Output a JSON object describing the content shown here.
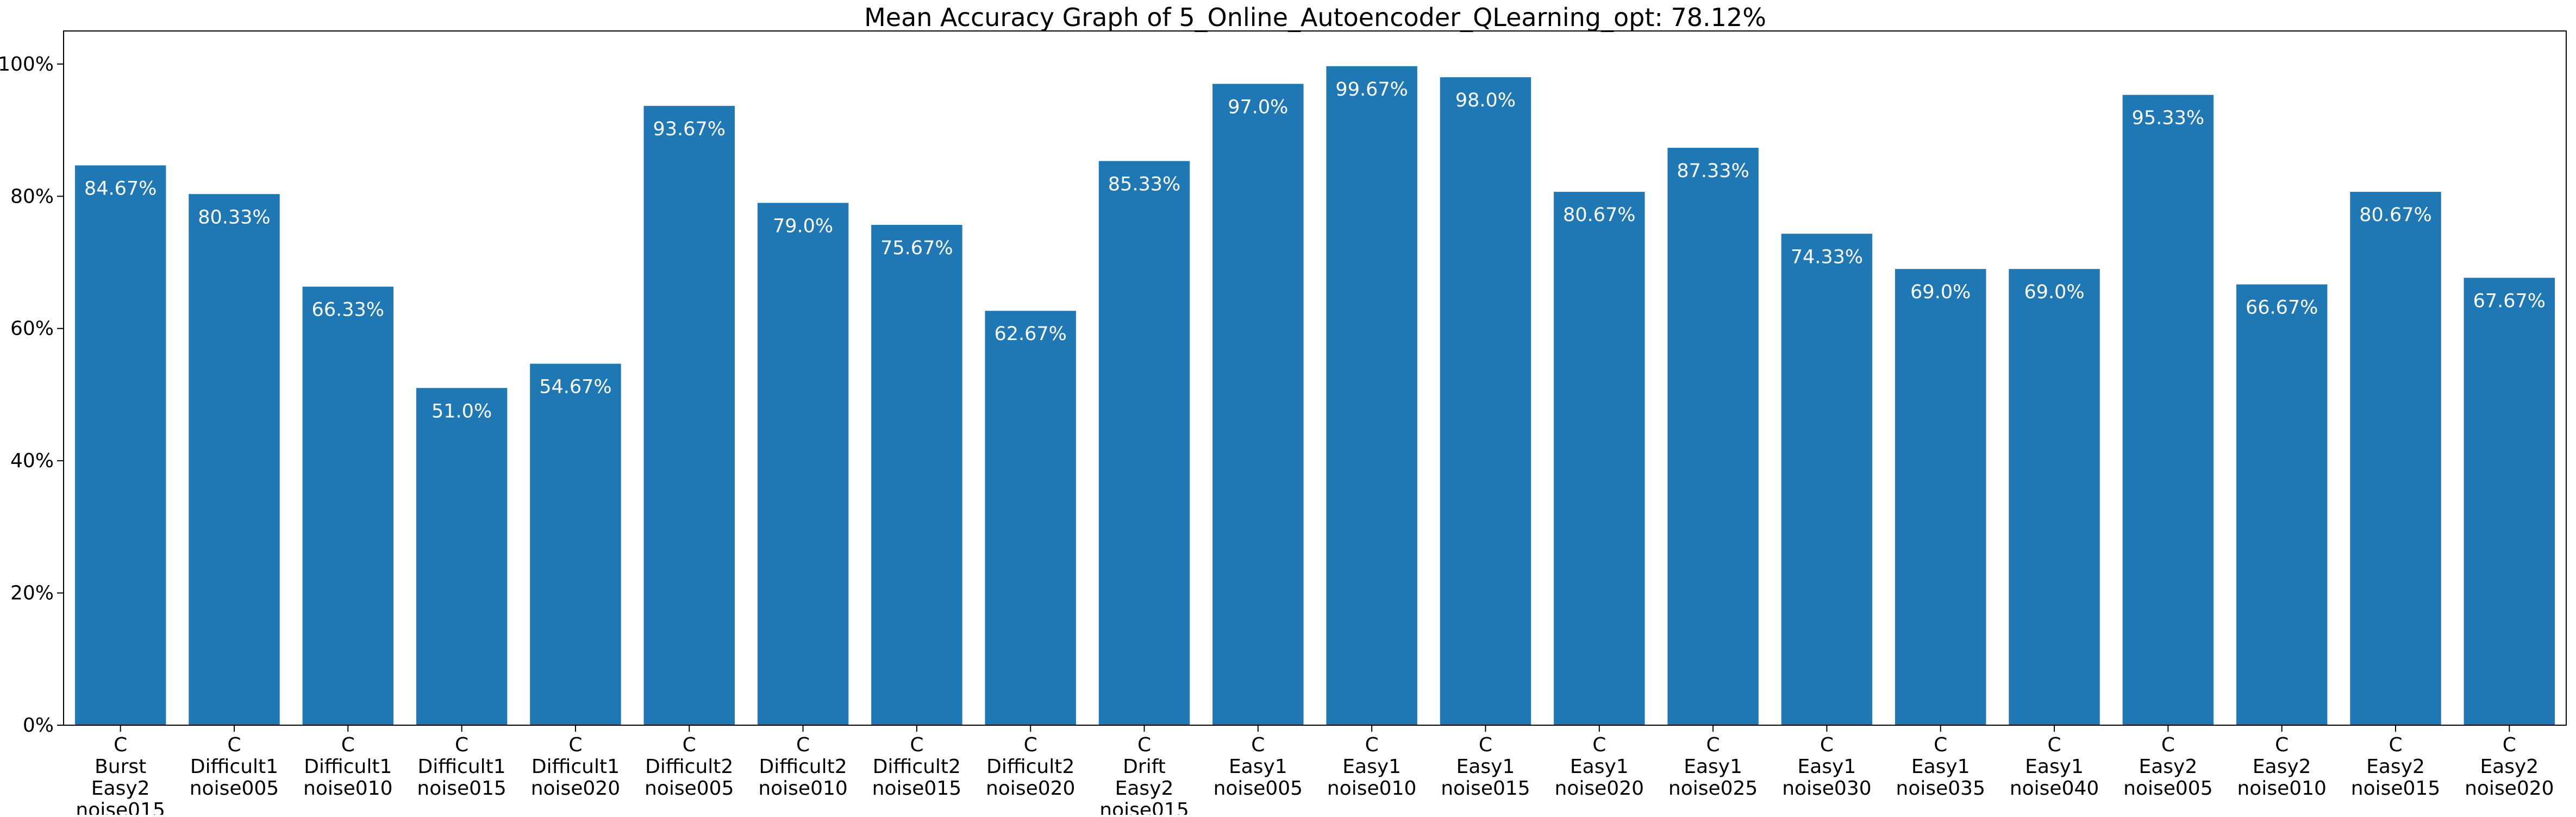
{
  "chart_data": {
    "type": "bar",
    "title": "Mean Accuracy Graph of 5_Online_Autoencoder_QLearning_opt: 78.12%",
    "xlabel": "",
    "ylabel": "",
    "ylim": [
      0,
      105
    ],
    "yticks": [
      {
        "value": 0,
        "label": "0%"
      },
      {
        "value": 20,
        "label": "20%"
      },
      {
        "value": 40,
        "label": "40%"
      },
      {
        "value": 60,
        "label": "60%"
      },
      {
        "value": 80,
        "label": "80%"
      },
      {
        "value": 100,
        "label": "100%"
      }
    ],
    "grid": false,
    "legend": "none",
    "bar_color": "#1f77b4",
    "label_color": "#ffffff",
    "categories": [
      [
        "C",
        "Burst",
        "Easy2",
        "noise015"
      ],
      [
        "C",
        "Difficult1",
        "noise005"
      ],
      [
        "C",
        "Difficult1",
        "noise010"
      ],
      [
        "C",
        "Difficult1",
        "noise015"
      ],
      [
        "C",
        "Difficult1",
        "noise020"
      ],
      [
        "C",
        "Difficult2",
        "noise005"
      ],
      [
        "C",
        "Difficult2",
        "noise010"
      ],
      [
        "C",
        "Difficult2",
        "noise015"
      ],
      [
        "C",
        "Difficult2",
        "noise020"
      ],
      [
        "C",
        "Drift",
        "Easy2",
        "noise015"
      ],
      [
        "C",
        "Easy1",
        "noise005"
      ],
      [
        "C",
        "Easy1",
        "noise010"
      ],
      [
        "C",
        "Easy1",
        "noise015"
      ],
      [
        "C",
        "Easy1",
        "noise020"
      ],
      [
        "C",
        "Easy1",
        "noise025"
      ],
      [
        "C",
        "Easy1",
        "noise030"
      ],
      [
        "C",
        "Easy1",
        "noise035"
      ],
      [
        "C",
        "Easy1",
        "noise040"
      ],
      [
        "C",
        "Easy2",
        "noise005"
      ],
      [
        "C",
        "Easy2",
        "noise010"
      ],
      [
        "C",
        "Easy2",
        "noise015"
      ],
      [
        "C",
        "Easy2",
        "noise020"
      ]
    ],
    "values": [
      84.67,
      80.33,
      66.33,
      51.0,
      54.67,
      93.67,
      79.0,
      75.67,
      62.67,
      85.33,
      97.0,
      99.67,
      98.0,
      80.67,
      87.33,
      74.33,
      69.0,
      69.0,
      95.33,
      66.67,
      80.67,
      67.67
    ],
    "value_labels": [
      "84.67%",
      "80.33%",
      "66.33%",
      "51.0%",
      "54.67%",
      "93.67%",
      "79.0%",
      "75.67%",
      "62.67%",
      "85.33%",
      "97.0%",
      "99.67%",
      "98.0%",
      "80.67%",
      "87.33%",
      "74.33%",
      "69.0%",
      "69.0%",
      "95.33%",
      "66.67%",
      "80.67%",
      "67.67%"
    ]
  }
}
